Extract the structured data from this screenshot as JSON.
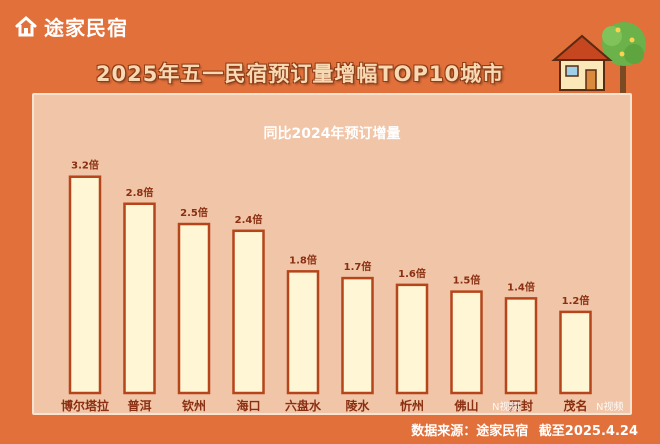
{
  "brand": {
    "name": "途家民宿"
  },
  "colors": {
    "background": "#e2703a",
    "panel": "#f1c5a7",
    "bar_fill": "#fef6d4",
    "bar_stroke": "#b5451b",
    "label": "#8a2f12"
  },
  "source": {
    "prefix": "数据来源：途家民宿",
    "date": "截至2025.4.24"
  },
  "watermarks": {
    "left": "N视频",
    "right": "N视频"
  },
  "chart_data": {
    "type": "bar",
    "title": "2025年五一民宿预订量增幅TOP10城市",
    "subtitle": "同比2024年预订增量",
    "unit": "倍",
    "categories": [
      "博尔塔拉",
      "普洱",
      "钦州",
      "海口",
      "六盘水",
      "陵水",
      "忻州",
      "佛山",
      "开封",
      "茂名"
    ],
    "values": [
      3.2,
      2.8,
      2.5,
      2.4,
      1.8,
      1.7,
      1.6,
      1.5,
      1.4,
      1.2
    ],
    "data_labels": [
      "3.2倍",
      "2.8倍",
      "2.5倍",
      "2.4倍",
      "1.8倍",
      "1.7倍",
      "1.6倍",
      "1.5倍",
      "1.4倍",
      "1.2倍"
    ],
    "ylim": [
      0,
      3.4
    ],
    "grid": false,
    "legend": "none"
  }
}
